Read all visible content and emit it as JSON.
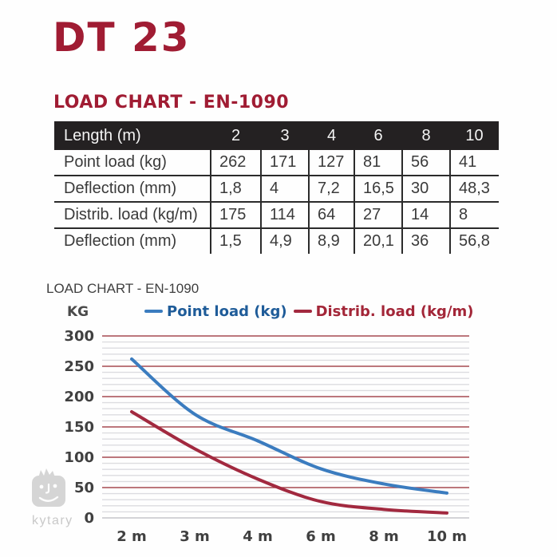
{
  "header": {
    "product": "DT 23",
    "section": "LOAD CHART - EN-1090",
    "accent_color": "#A01C33"
  },
  "table": {
    "header": [
      "Length (m)",
      "2",
      "3",
      "4",
      "6",
      "8",
      "10"
    ],
    "rows": [
      {
        "label": "Point load (kg)",
        "values": [
          "262",
          "171",
          "127",
          "81",
          "56",
          "41"
        ]
      },
      {
        "label": "Deflection (mm)",
        "values": [
          "1,8",
          "4",
          "7,2",
          "16,5",
          "30",
          "48,3"
        ]
      },
      {
        "label": "Distrib. load (kg/m)",
        "values": [
          "175",
          "114",
          "64",
          "27",
          "14",
          "8"
        ]
      },
      {
        "label": "Deflection (mm)",
        "values": [
          "1,5",
          "4,9",
          "8,9",
          "20,1",
          "36",
          "56,8"
        ]
      }
    ],
    "header_bg": "#242122",
    "border_color": "#2B2B2B"
  },
  "chart_data": {
    "type": "line",
    "title": "LOAD CHART - EN-1090",
    "y_unit_label": "KG",
    "categories": [
      "2 m",
      "3 m",
      "4 m",
      "6 m",
      "8 m",
      "10 m"
    ],
    "series": [
      {
        "name": "Point load (kg)",
        "color": "#3B7CBF",
        "label_color": "#1F5C99",
        "values": [
          262,
          171,
          127,
          81,
          56,
          41
        ]
      },
      {
        "name": "Distrib. load (kg/m)",
        "color": "#A2293F",
        "label_color": "#A32638",
        "values": [
          175,
          114,
          64,
          27,
          14,
          8
        ]
      }
    ],
    "ylim": [
      0,
      300
    ],
    "y_ticks": [
      "0",
      "50",
      "100",
      "150",
      "200",
      "250",
      "300"
    ],
    "y_major_step": 50,
    "y_minor_step": 10,
    "grid": {
      "major_color": "#A54A50",
      "minor_color": "#DCDCE0",
      "zero_color": "#C6C6CA"
    },
    "legend_position": "top",
    "x_spacing": "categorical-even"
  },
  "watermark": {
    "text": "kytary",
    "mascot_icon": "kytary-mascot-icon",
    "color": "#D5D5D5"
  }
}
